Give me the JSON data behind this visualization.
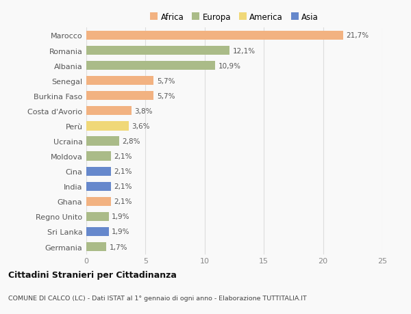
{
  "countries": [
    "Marocco",
    "Romania",
    "Albania",
    "Senegal",
    "Burkina Faso",
    "Costa d'Avorio",
    "Perù",
    "Ucraina",
    "Moldova",
    "Cina",
    "India",
    "Ghana",
    "Regno Unito",
    "Sri Lanka",
    "Germania"
  ],
  "values": [
    21.7,
    12.1,
    10.9,
    5.7,
    5.7,
    3.8,
    3.6,
    2.8,
    2.1,
    2.1,
    2.1,
    2.1,
    1.9,
    1.9,
    1.7
  ],
  "labels": [
    "21,7%",
    "12,1%",
    "10,9%",
    "5,7%",
    "5,7%",
    "3,8%",
    "3,6%",
    "2,8%",
    "2,1%",
    "2,1%",
    "2,1%",
    "2,1%",
    "1,9%",
    "1,9%",
    "1,7%"
  ],
  "continents": [
    "Africa",
    "Europa",
    "Europa",
    "Africa",
    "Africa",
    "Africa",
    "America",
    "Europa",
    "Europa",
    "Asia",
    "Asia",
    "Africa",
    "Europa",
    "Asia",
    "Europa"
  ],
  "colors": {
    "Africa": "#F2B281",
    "Europa": "#AABB88",
    "America": "#F0D878",
    "Asia": "#6688CC"
  },
  "legend_order": [
    "Africa",
    "Europa",
    "America",
    "Asia"
  ],
  "xlim": [
    0,
    25
  ],
  "xticks": [
    0,
    5,
    10,
    15,
    20,
    25
  ],
  "title": "Cittadini Stranieri per Cittadinanza",
  "subtitle": "COMUNE DI CALCO (LC) - Dati ISTAT al 1° gennaio di ogni anno - Elaborazione TUTTITALIA.IT",
  "bg_color": "#f9f9f9",
  "bar_height": 0.6,
  "grid_color": "#dddddd"
}
